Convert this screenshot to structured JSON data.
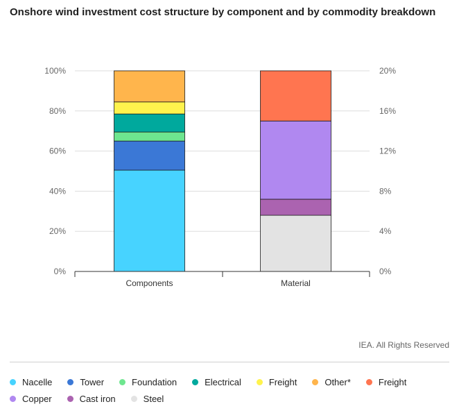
{
  "chart_data": {
    "type": "bar",
    "title": "Onshore wind investment cost structure by component and by commodity breakdown",
    "categories": [
      "Components",
      "Material"
    ],
    "left_axis": {
      "ticks": [
        "0%",
        "20%",
        "40%",
        "60%",
        "80%",
        "100%"
      ],
      "ylim": [
        0,
        100
      ]
    },
    "right_axis": {
      "ticks": [
        "0%",
        "4%",
        "8%",
        "12%",
        "16%",
        "20%"
      ],
      "ylim": [
        0,
        20
      ]
    },
    "stacks": [
      {
        "category": "Components",
        "axis": "left",
        "series": [
          {
            "name": "Nacelle",
            "value": 50.5,
            "color": "#47d3ff"
          },
          {
            "name": "Tower",
            "value": 14.5,
            "color": "#3b78d6"
          },
          {
            "name": "Foundation",
            "value": 4.5,
            "color": "#6ee68f"
          },
          {
            "name": "Electrical",
            "value": 9,
            "color": "#00a99d"
          },
          {
            "name": "Freight",
            "value": 6,
            "color": "#fff34d"
          },
          {
            "name": "Other*",
            "value": 15.5,
            "color": "#ffb54c"
          }
        ]
      },
      {
        "category": "Material",
        "axis": "right",
        "series": [
          {
            "name": "Steel",
            "value": 5.6,
            "color": "#e3e3e3"
          },
          {
            "name": "Cast iron",
            "value": 1.6,
            "color": "#ab63b0"
          },
          {
            "name": "Copper",
            "value": 7.8,
            "color": "#b088f0"
          },
          {
            "name": "Freight",
            "value": 5.0,
            "color": "#ff7550"
          }
        ]
      }
    ],
    "legend_position": "bottom"
  },
  "source": "IEA. All Rights Reserved",
  "legend": [
    [
      {
        "label": "Nacelle",
        "color": "#47d3ff"
      },
      {
        "label": "Tower",
        "color": "#3b78d6"
      },
      {
        "label": "Foundation",
        "color": "#6ee68f"
      },
      {
        "label": "Electrical",
        "color": "#00a99d"
      },
      {
        "label": "Freight",
        "color": "#fff34d"
      },
      {
        "label": "Other*",
        "color": "#ffb54c"
      },
      {
        "label": "Freight",
        "color": "#ff7550"
      }
    ],
    [
      {
        "label": "Copper",
        "color": "#b088f0"
      },
      {
        "label": "Cast iron",
        "color": "#ab63b0"
      },
      {
        "label": "Steel",
        "color": "#e3e3e3"
      }
    ]
  ]
}
